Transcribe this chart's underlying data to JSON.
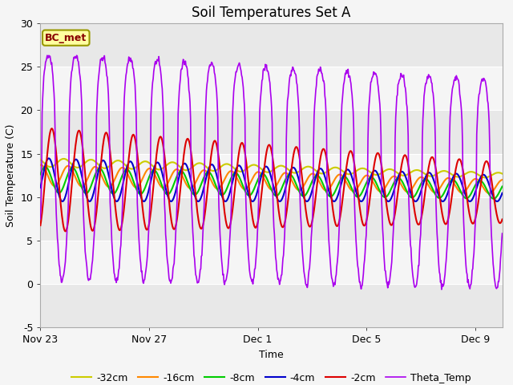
{
  "title": "Soil Temperatures Set A",
  "xlabel": "Time",
  "ylabel": "Soil Temperature (C)",
  "ylim": [
    -5,
    30
  ],
  "fig_bg_color": "#f5f5f5",
  "plot_bg_color": "#ffffff",
  "band_colors": [
    "#e8e8e8",
    "#f5f5f5"
  ],
  "bc_met_label": "BC_met",
  "series": {
    "2cm": {
      "color": "#dd0000",
      "label": "-2cm"
    },
    "4cm": {
      "color": "#0000cc",
      "label": "-4cm"
    },
    "8cm": {
      "color": "#00cc00",
      "label": "-8cm"
    },
    "16cm": {
      "color": "#ff8800",
      "label": "-16cm"
    },
    "32cm": {
      "color": "#cccc00",
      "label": "-32cm"
    },
    "theta": {
      "color": "#aa00ee",
      "label": "Theta_Temp"
    }
  },
  "xtick_labels": [
    "Nov 23",
    "Nov 27",
    "Dec 1",
    "Dec 5",
    "Dec 9"
  ],
  "xtick_positions": [
    0,
    4,
    8,
    12,
    16
  ],
  "ytick_positions": [
    -5,
    0,
    5,
    10,
    15,
    20,
    25,
    30
  ],
  "title_fontsize": 12,
  "legend_fontsize": 9,
  "tick_fontsize": 9,
  "axis_label_fontsize": 9
}
